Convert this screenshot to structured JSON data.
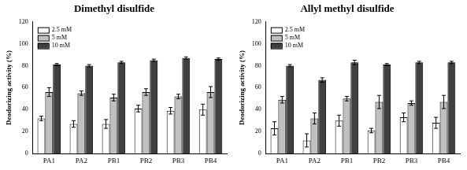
{
  "chart_data": [
    {
      "type": "bar",
      "title": "Dimethyl disulfide",
      "y_label": "Deodorizing activity (%)",
      "categories": [
        "PA1",
        "PA2",
        "PB1",
        "PB2",
        "PB3",
        "PB4"
      ],
      "series": [
        {
          "name": "2.5 mM",
          "color": "#ffffff",
          "values": [
            32,
            27,
            27,
            41,
            39,
            40
          ],
          "errors": [
            2,
            3,
            4,
            3,
            3,
            5
          ]
        },
        {
          "name": "5 mM",
          "color": "#c0c0c0",
          "values": [
            56,
            55,
            51,
            56,
            52,
            56
          ],
          "errors": [
            4,
            2,
            3,
            3,
            2,
            5
          ]
        },
        {
          "name": "10 mM",
          "color": "#404040",
          "values": [
            81,
            80,
            83,
            85,
            87,
            86
          ],
          "errors": [
            1,
            1,
            1,
            1,
            1,
            1
          ]
        }
      ],
      "ylim": [
        0,
        120
      ],
      "yticks": [
        0,
        20,
        40,
        60,
        80,
        100,
        120
      ],
      "grid": false,
      "legend": "top-left"
    },
    {
      "type": "bar",
      "title": "Allyl methyl disulfide",
      "y_label": "Deodorizing activity (%)",
      "categories": [
        "PA1",
        "PA2",
        "PB1",
        "PB2",
        "PB3",
        "PB4"
      ],
      "series": [
        {
          "name": "2.5 mM",
          "color": "#ffffff",
          "values": [
            23,
            12,
            30,
            21,
            33,
            28
          ],
          "errors": [
            6,
            6,
            5,
            2,
            4,
            5
          ]
        },
        {
          "name": "5 mM",
          "color": "#c0c0c0",
          "values": [
            49,
            32,
            50,
            47,
            46,
            47
          ],
          "errors": [
            3,
            5,
            2,
            6,
            2,
            6
          ]
        },
        {
          "name": "10 mM",
          "color": "#404040",
          "values": [
            80,
            67,
            83,
            81,
            83,
            83
          ],
          "errors": [
            1,
            2,
            2,
            1,
            1,
            1
          ]
        }
      ],
      "ylim": [
        0,
        120
      ],
      "yticks": [
        0,
        20,
        40,
        60,
        80,
        100,
        120
      ],
      "grid": false,
      "legend": "top-left"
    }
  ]
}
